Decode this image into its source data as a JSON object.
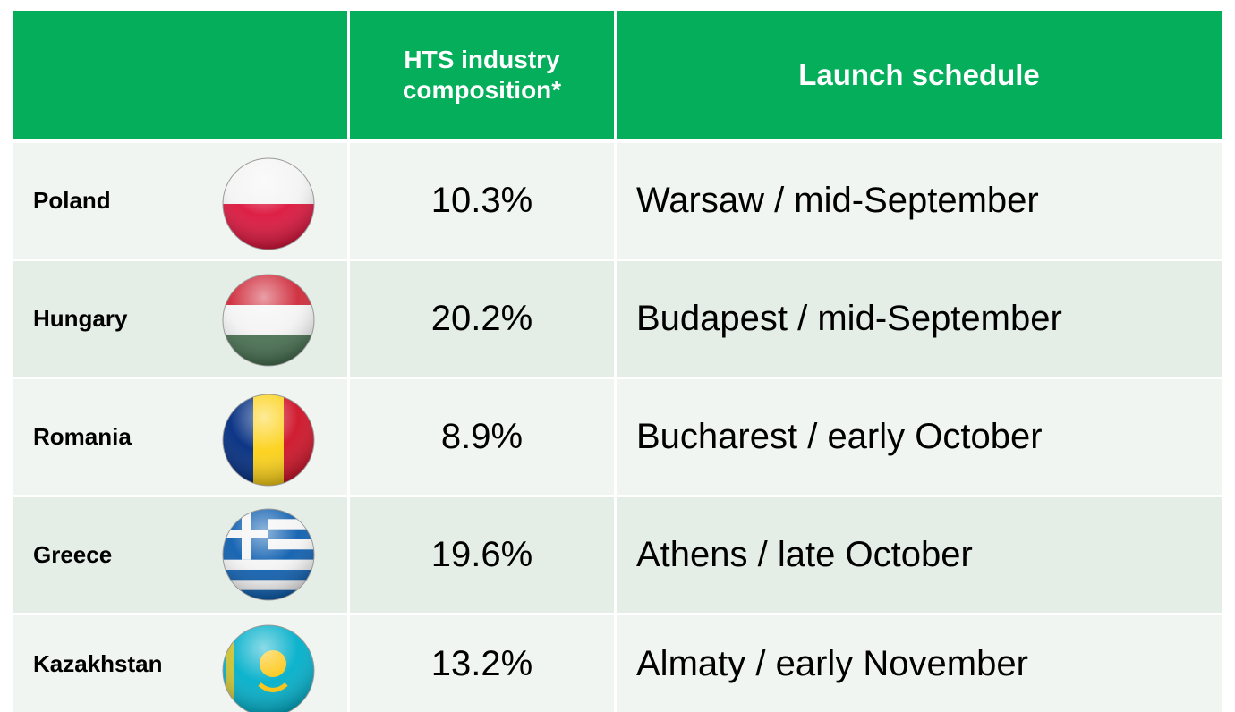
{
  "table": {
    "header": [
      "HTS industry composition*",
      "Launch schedule"
    ],
    "rows": [
      {
        "country": "Poland",
        "composition": "10.3%",
        "schedule": "Warsaw / mid-September"
      },
      {
        "country": "Hungary",
        "composition": "20.2%",
        "schedule": "Budapest / mid-September"
      },
      {
        "country": "Romania",
        "composition": "8.9%",
        "schedule": "Bucharest / early October"
      },
      {
        "country": "Greece",
        "composition": "19.6%",
        "schedule": "Athens / late October"
      },
      {
        "country": "Kazakhstan",
        "composition": "13.2%",
        "schedule": "Almaty / early November"
      }
    ]
  }
}
